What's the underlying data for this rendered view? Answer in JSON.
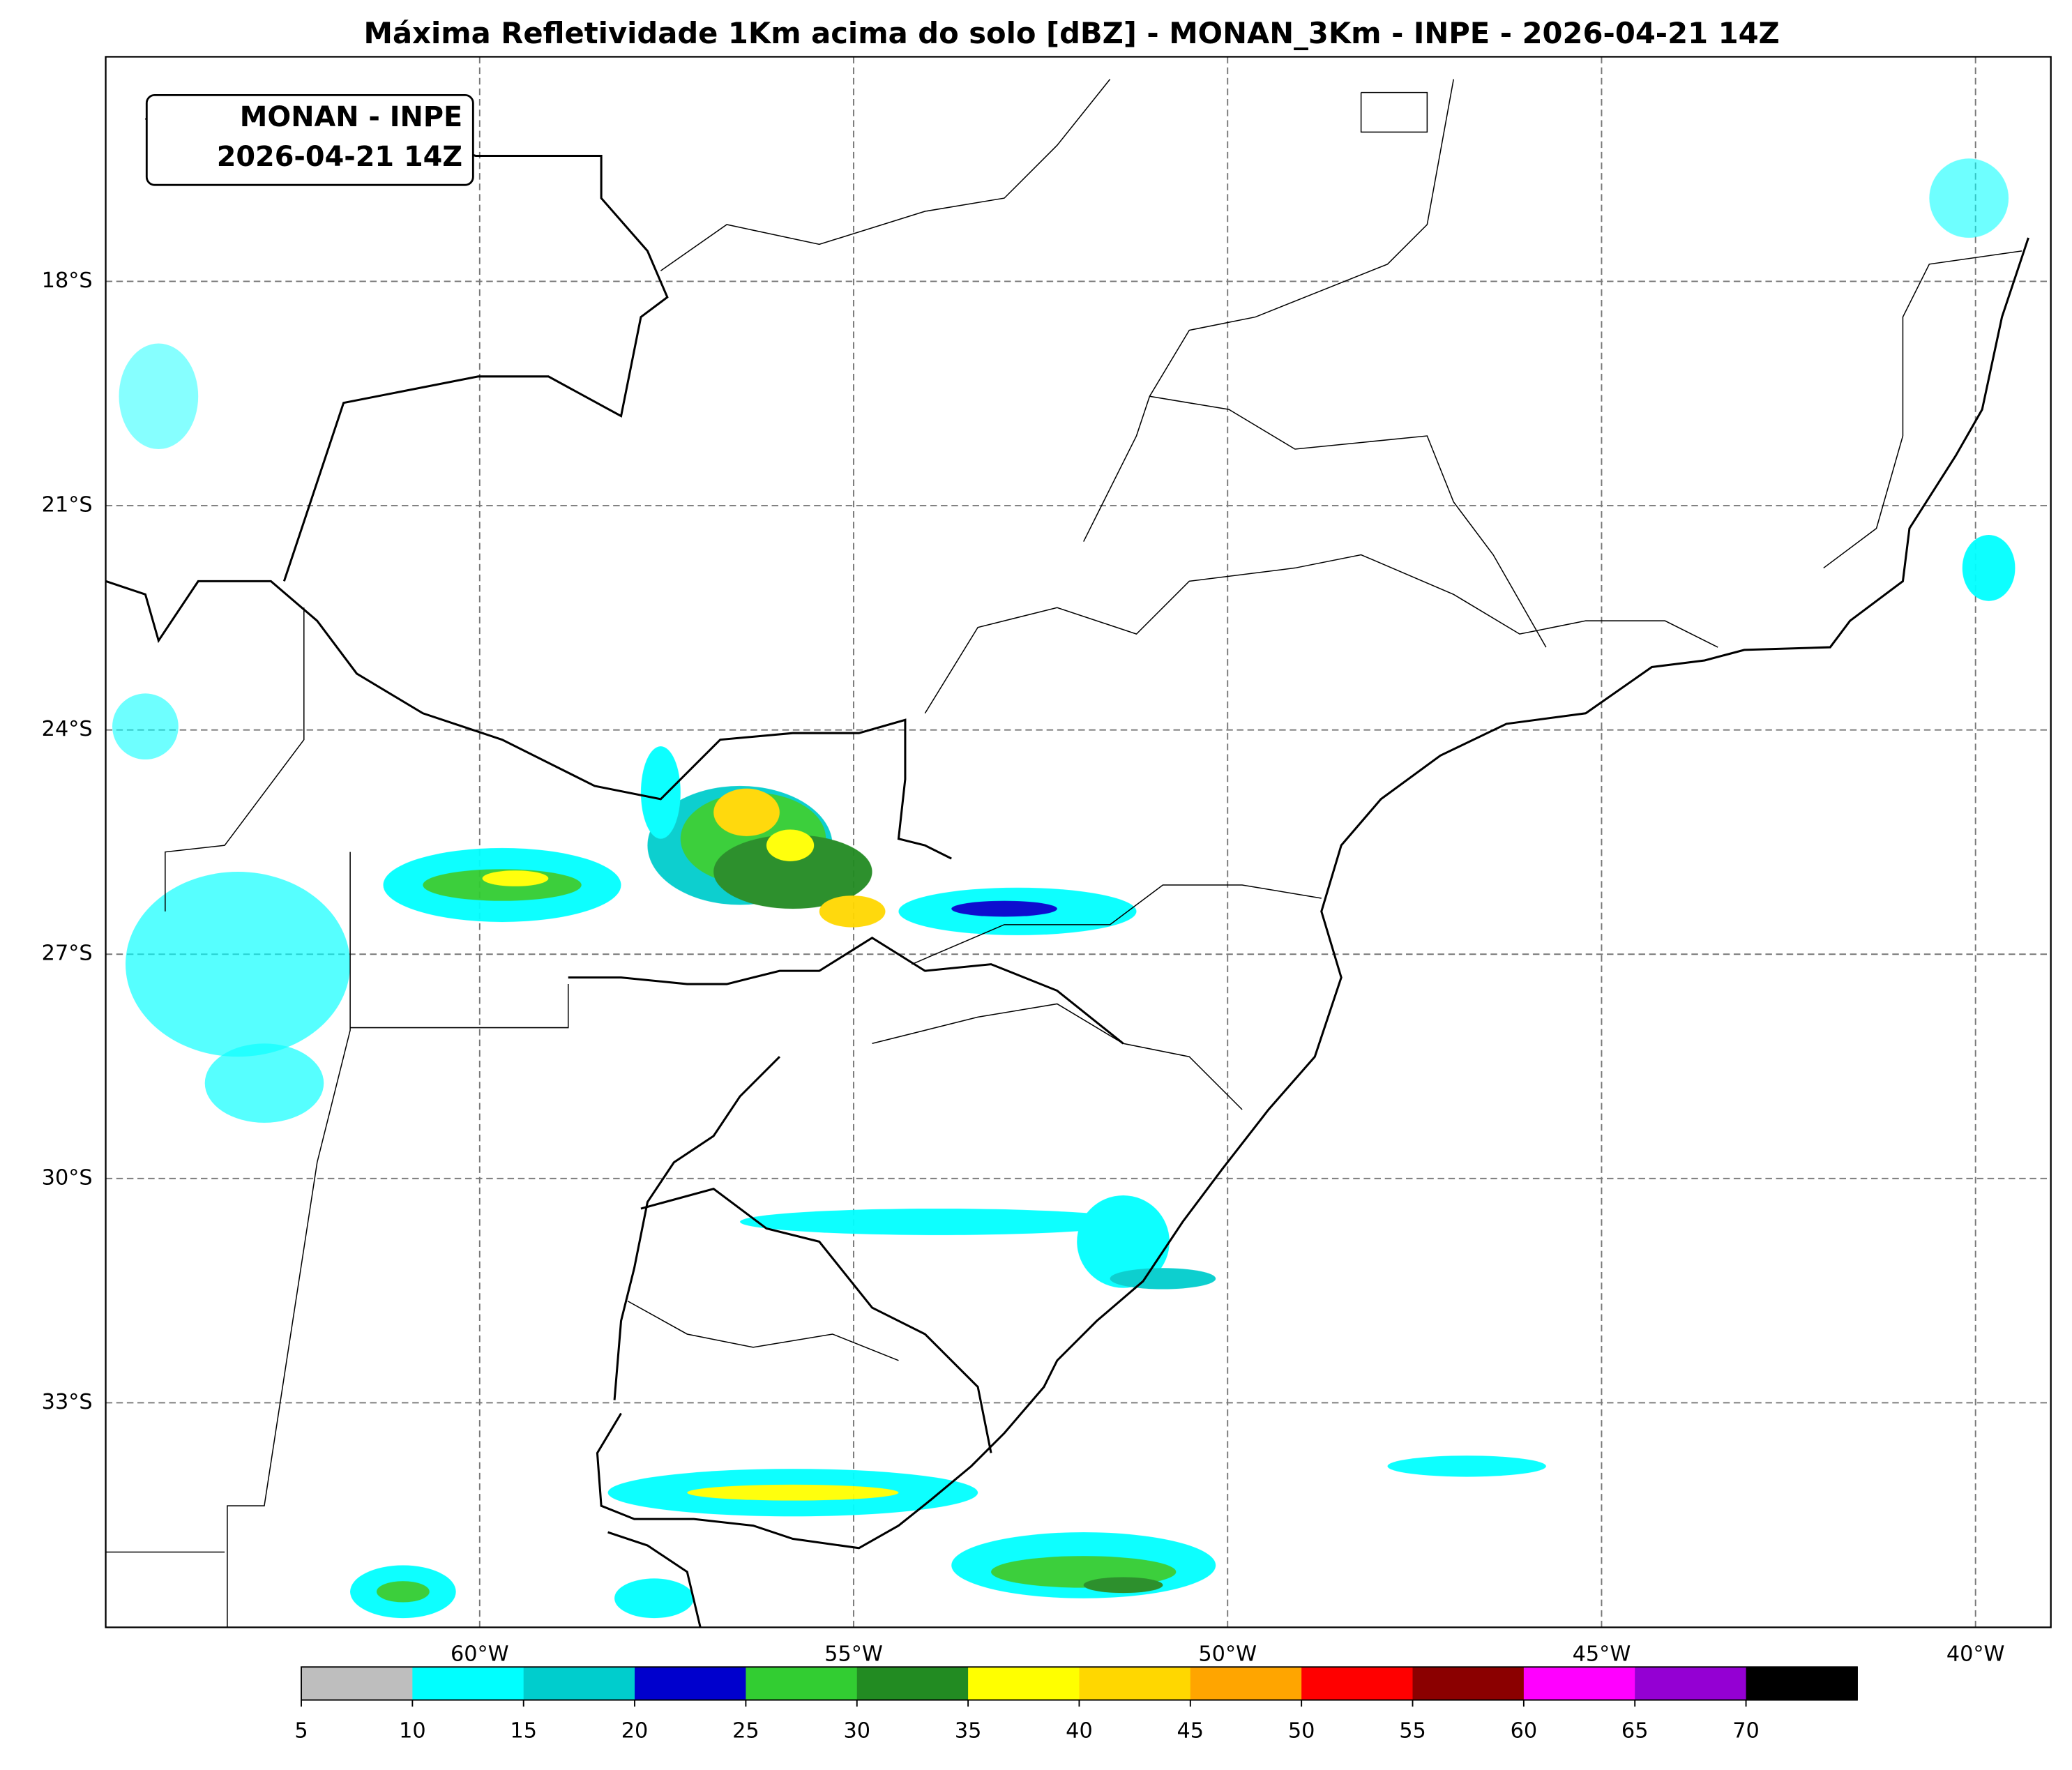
{
  "title": "Máxima Refletividade 1Km acima do solo [dBZ] - MONAN_3Km - INPE - 2026-04-21 14Z",
  "annotation": {
    "line1": "MONAN - INPE",
    "line2": "2026-04-21 14Z"
  },
  "map": {
    "lat_labels": [
      "18°S",
      "21°S",
      "24°S",
      "27°S",
      "30°S",
      "33°S"
    ],
    "lon_labels": [
      "60°W",
      "55°W",
      "50°W",
      "45°W",
      "40°W"
    ]
  },
  "colorbar": {
    "ticks": [
      5,
      10,
      15,
      20,
      25,
      30,
      35,
      40,
      45,
      50,
      55,
      60,
      65,
      70
    ],
    "colors": [
      "#bebebe",
      "#00ffff",
      "#00cdcd",
      "#0000cd",
      "#32cd32",
      "#228b22",
      "#ffff00",
      "#ffd700",
      "#ffa500",
      "#ff0000",
      "#8b0000",
      "#ff00ff",
      "#9400d3",
      "#000000"
    ]
  }
}
